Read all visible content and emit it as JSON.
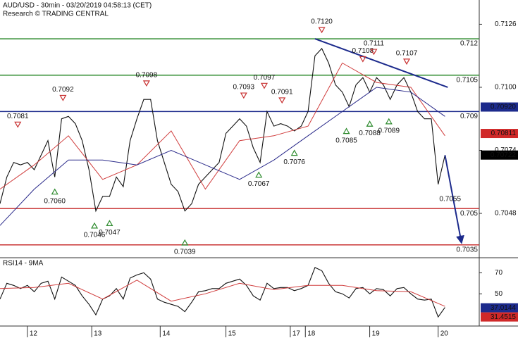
{
  "chart_data": [
    {
      "type": "line",
      "title": "AUD/USD - 30min - 03/20/2019 04:58:13 (CET)",
      "subtitle": "Research © TRADING CENTRAL",
      "xlim": [
        0,
        350
      ],
      "ylim": [
        0.703,
        0.7136
      ],
      "yticks": [
        {
          "value": 0.7126,
          "label": "0.7126"
        },
        {
          "value": 0.71,
          "label": "0.7100"
        },
        {
          "value": 0.7074,
          "label": "0.7074"
        },
        {
          "value": 0.7048,
          "label": "0.7048"
        }
      ],
      "series": [
        {
          "color": "#111111",
          "x": [
            0,
            5,
            10,
            15,
            20,
            25,
            30,
            35,
            40,
            45,
            50,
            55,
            60,
            65,
            70,
            75,
            80,
            85,
            90,
            95,
            100,
            105,
            110,
            115,
            120,
            125,
            130,
            135,
            140,
            145,
            150,
            155,
            160,
            165,
            170,
            175,
            180,
            185,
            190,
            195,
            200,
            205,
            210,
            215,
            220,
            225,
            230,
            235,
            240,
            245,
            250,
            255,
            260,
            265,
            270,
            275,
            280,
            285,
            290,
            295,
            300,
            305,
            310,
            315,
            320,
            325
          ],
          "values": [
            0.7052,
            0.7063,
            0.7069,
            0.7068,
            0.7069,
            0.7066,
            0.7072,
            0.7078,
            0.7063,
            0.7087,
            0.7088,
            0.7085,
            0.7078,
            0.7066,
            0.7049,
            0.7055,
            0.7055,
            0.7063,
            0.7059,
            0.7078,
            0.7087,
            0.7095,
            0.7095,
            0.7078,
            0.7069,
            0.706,
            0.7057,
            0.7049,
            0.7052,
            0.706,
            0.7063,
            0.7066,
            0.7069,
            0.7081,
            0.7084,
            0.7087,
            0.7084,
            0.7075,
            0.7069,
            0.709,
            0.7084,
            0.7085,
            0.7084,
            0.7082,
            0.7084,
            0.709,
            0.7113,
            0.7116,
            0.711,
            0.7101,
            0.7098,
            0.7092,
            0.7101,
            0.7104,
            0.7098,
            0.7104,
            0.7101,
            0.7095,
            0.7101,
            0.7104,
            0.7098,
            0.709,
            0.7087,
            0.7087,
            0.706,
            0.7072
          ]
        },
        {
          "color": "#d03c3c",
          "x": [
            0,
            25,
            50,
            75,
            100,
            125,
            150,
            175,
            200,
            225,
            250,
            275,
            300,
            325
          ],
          "values": [
            0.7058,
            0.7068,
            0.708,
            0.7062,
            0.7068,
            0.7082,
            0.7058,
            0.7078,
            0.708,
            0.7084,
            0.711,
            0.7102,
            0.71,
            0.708
          ]
        },
        {
          "color": "#2a2a8a",
          "x": [
            0,
            25,
            50,
            75,
            100,
            125,
            150,
            175,
            200,
            225,
            250,
            275,
            300,
            325
          ],
          "values": [
            0.7043,
            0.7058,
            0.707,
            0.707,
            0.7068,
            0.7074,
            0.7068,
            0.7062,
            0.707,
            0.708,
            0.709,
            0.71,
            0.7098,
            0.7088
          ]
        }
      ],
      "levels": [
        {
          "value": 0.712,
          "color": "#2e8b2e"
        },
        {
          "value": 0.7105,
          "color": "#2e8b2e"
        },
        {
          "value": 0.709,
          "color": "#1c2a8c"
        },
        {
          "value": 0.705,
          "color": "#c83030"
        },
        {
          "value": 0.7035,
          "color": "#c83030"
        }
      ],
      "price_boxes": [
        {
          "value": 0.7092,
          "label": "0.70920",
          "color": "#1c2a8c"
        },
        {
          "value": 0.70811,
          "label": "0.70811",
          "color": "#d02828"
        },
        {
          "value": 0.70722,
          "label": "0.70722",
          "color": "#000000"
        }
      ],
      "annotations": [
        {
          "kind": "high",
          "x": 13,
          "value": 0.7081,
          "label": "0.7081"
        },
        {
          "kind": "high",
          "x": 46,
          "value": 0.7092,
          "label": "0.7092"
        },
        {
          "kind": "high",
          "x": 107,
          "value": 0.7098,
          "label": "0.7098"
        },
        {
          "kind": "high",
          "x": 178,
          "value": 0.7093,
          "label": "0.7093"
        },
        {
          "kind": "high",
          "x": 193,
          "value": 0.7097,
          "label": "0.7097"
        },
        {
          "kind": "high",
          "x": 206,
          "value": 0.7091,
          "label": "0.7091"
        },
        {
          "kind": "high",
          "x": 235,
          "value": 0.712,
          "label": "0.7120"
        },
        {
          "kind": "high",
          "x": 265,
          "value": 0.7108,
          "label": "0.7108"
        },
        {
          "kind": "high",
          "x": 273,
          "value": 0.7111,
          "label": "0.7111"
        },
        {
          "kind": "high",
          "x": 297,
          "value": 0.7107,
          "label": "0.7107"
        },
        {
          "kind": "low",
          "x": 40,
          "value": 0.706,
          "label": "0.7060"
        },
        {
          "kind": "low",
          "x": 69,
          "value": 0.7046,
          "label": "0.7046"
        },
        {
          "kind": "low",
          "x": 80,
          "value": 0.7047,
          "label": "0.7047"
        },
        {
          "kind": "low",
          "x": 135,
          "value": 0.7039,
          "label": "0.7039"
        },
        {
          "kind": "low",
          "x": 189,
          "value": 0.7067,
          "label": "0.7067"
        },
        {
          "kind": "low",
          "x": 215,
          "value": 0.7076,
          "label": "0.7076"
        },
        {
          "kind": "low",
          "x": 253,
          "value": 0.7085,
          "label": "0.7085"
        },
        {
          "kind": "low",
          "x": 270,
          "value": 0.7088,
          "label": "0.7088"
        },
        {
          "kind": "low",
          "x": 284,
          "value": 0.7089,
          "label": "0.7089"
        },
        {
          "kind": "note",
          "x": 325,
          "value": 0.7055,
          "label": "0.7055"
        }
      ],
      "trendline": {
        "color": "#1c2a8c",
        "x": [
          230,
          327
        ],
        "values": [
          0.712,
          0.71
        ]
      },
      "arrow": {
        "color": "#1c2a8c",
        "x": [
          325,
          337
        ],
        "values": [
          0.7072,
          0.7036
        ]
      }
    },
    {
      "type": "line",
      "title": "RSI14 - 9MA",
      "xlim": [
        0,
        350
      ],
      "ylim": [
        20,
        83
      ],
      "yticks": [
        70,
        50
      ],
      "xticks": [
        {
          "value": 20,
          "label": "12"
        },
        {
          "value": 67,
          "label": "13"
        },
        {
          "value": 117,
          "label": "14"
        },
        {
          "value": 165,
          "label": "15"
        },
        {
          "value": 212,
          "label": "17"
        },
        {
          "value": 223,
          "label": "18"
        },
        {
          "value": 270,
          "label": "19"
        },
        {
          "value": 320,
          "label": "20"
        }
      ],
      "series": [
        {
          "color": "#111111",
          "x": [
            0,
            5,
            10,
            15,
            20,
            25,
            30,
            35,
            40,
            45,
            50,
            55,
            60,
            65,
            70,
            75,
            80,
            85,
            90,
            95,
            100,
            105,
            110,
            115,
            120,
            125,
            130,
            135,
            140,
            145,
            150,
            155,
            160,
            165,
            170,
            175,
            180,
            185,
            190,
            195,
            200,
            205,
            210,
            215,
            220,
            225,
            230,
            235,
            240,
            245,
            250,
            255,
            260,
            265,
            270,
            275,
            280,
            285,
            290,
            295,
            300,
            305,
            310,
            315,
            320,
            325
          ],
          "values": [
            45,
            60,
            58,
            55,
            58,
            52,
            60,
            62,
            45,
            66,
            62,
            58,
            48,
            40,
            30,
            45,
            48,
            55,
            45,
            65,
            68,
            70,
            64,
            45,
            42,
            40,
            38,
            33,
            42,
            52,
            53,
            55,
            55,
            60,
            62,
            64,
            58,
            48,
            44,
            60,
            55,
            56,
            56,
            53,
            55,
            58,
            75,
            72,
            60,
            52,
            50,
            46,
            55,
            56,
            50,
            55,
            54,
            48,
            55,
            56,
            50,
            45,
            44,
            45,
            28,
            37
          ]
        },
        {
          "color": "#d03c3c",
          "x": [
            0,
            25,
            50,
            75,
            100,
            125,
            150,
            175,
            200,
            225,
            250,
            275,
            300,
            325
          ],
          "values": [
            55,
            56,
            60,
            45,
            63,
            43,
            50,
            60,
            54,
            58,
            58,
            53,
            52,
            38
          ]
        }
      ],
      "price_boxes": [
        {
          "value": 37.0144,
          "label": "37.0144",
          "color": "#1c2a8c"
        },
        {
          "value": 31.4515,
          "label": "31.4515",
          "color": "#d02828"
        }
      ]
    }
  ]
}
